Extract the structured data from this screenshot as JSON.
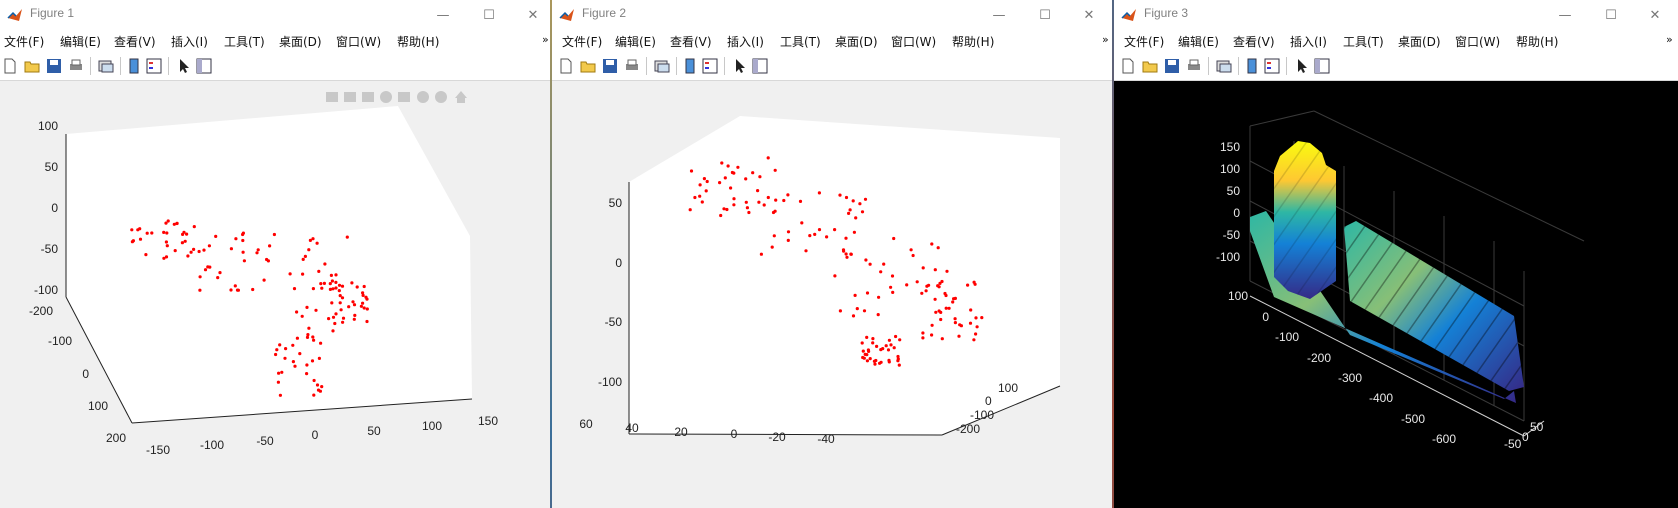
{
  "figures": [
    {
      "title": "Figure 1",
      "menu": [
        "文件(F)",
        "编辑(E)",
        "查看(V)",
        "插入(I)",
        "工具(T)",
        "桌面(D)",
        "窗口(W)",
        "帮助(H)"
      ],
      "axes": {
        "z_ticks": [
          "100",
          "50",
          "0",
          "-50",
          "-100"
        ],
        "y_ticks": [
          "-200",
          "-100",
          "0",
          "100",
          "200"
        ],
        "x_ticks": [
          "-150",
          "-100",
          "-50",
          "0",
          "50",
          "100",
          "150"
        ]
      }
    },
    {
      "title": "Figure 2",
      "menu": [
        "文件(F)",
        "编辑(E)",
        "查看(V)",
        "插入(I)",
        "工具(T)",
        "桌面(D)",
        "窗口(W)",
        "帮助(H)"
      ],
      "axes": {
        "z_ticks": [
          "50",
          "0",
          "-50",
          "-100"
        ],
        "x_ticks": [
          "60",
          "40",
          "20",
          "0",
          "-20",
          "-40"
        ],
        "y_ticks": [
          "100",
          "0",
          "-100",
          "-200"
        ]
      }
    },
    {
      "title": "Figure 3",
      "menu": [
        "文件(F)",
        "编辑(E)",
        "查看(V)",
        "插入(I)",
        "工具(T)",
        "桌面(D)",
        "窗口(W)",
        "帮助(H)"
      ],
      "axes": {
        "z_ticks": [
          "150",
          "100",
          "50",
          "0",
          "-50",
          "-100"
        ],
        "x_ticks": [
          "100",
          "0",
          "-100",
          "-200",
          "-300",
          "-400",
          "-500",
          "-600"
        ],
        "y_ticks": [
          "50",
          "0",
          "-50"
        ]
      }
    }
  ],
  "window_buttons": {
    "minimize": "—",
    "maximize": "☐",
    "close": "✕"
  },
  "more_glyph": "»",
  "colors": {
    "points": "#ff0000",
    "figure3_bg": "#000000",
    "parula": [
      "#352a87",
      "#0f5cdd",
      "#1481d6",
      "#06a4ca",
      "#2eb7a4",
      "#87bf77",
      "#d1bb59",
      "#fec832",
      "#f9fb0e"
    ]
  }
}
